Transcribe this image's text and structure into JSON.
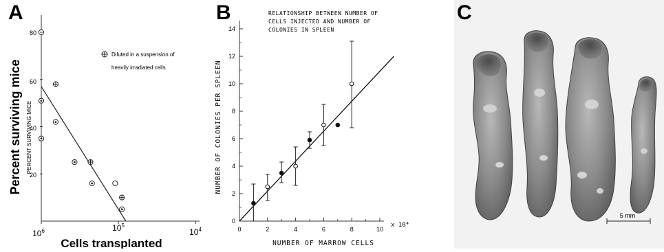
{
  "panels": {
    "a": {
      "letter": "A",
      "ylabel_outer": "Percent surviving mice",
      "ylabel_inner": "PERCENT SURVIVING MICE",
      "xlabel": "Cells transplanted",
      "legend_text_1": "Diluted in a suspension of",
      "legend_text_2": "heavily irradiated cells",
      "y_ticks": [
        "80",
        "60",
        "40",
        "20"
      ],
      "x_ticks": [
        {
          "base": "10",
          "exp": "6"
        },
        {
          "base": "10",
          "exp": "5"
        },
        {
          "base": "10",
          "exp": "4"
        }
      ]
    },
    "b": {
      "letter": "B",
      "title_1": "RELATIONSHIP BETWEEN NUMBER OF",
      "title_2": "CELLS INJECTED AND NUMBER OF",
      "title_3": "COLONIES IN SPLEEN",
      "ylabel": "NUMBER OF COLONIES PER SPLEEN",
      "xlabel": "NUMBER OF MARROW CELLS",
      "x_multiplier": "x 10⁴",
      "y_ticks": [
        "0",
        "2",
        "4",
        "6",
        "8",
        "10",
        "12",
        "14"
      ],
      "x_ticks": [
        "0",
        "2",
        "4",
        "6",
        "8",
        "10"
      ]
    },
    "c": {
      "letter": "C",
      "scale_label": "5 mm"
    }
  },
  "chart_data": [
    {
      "type": "scatter",
      "panel": "A",
      "xlabel": "Cells transplanted",
      "ylabel": "Percent surviving mice",
      "x_scale": "log",
      "x_reversed": true,
      "xlim": [
        1000000,
        10000
      ],
      "ylim": [
        0,
        85
      ],
      "legend": "Diluted in a suspension of heavily irradiated cells",
      "points": [
        {
          "x": 1000000,
          "y": 80,
          "marker": "open"
        },
        {
          "x": 1000000,
          "y": 51,
          "marker": "dotted"
        },
        {
          "x": 1000000,
          "y": 35,
          "marker": "dotted"
        },
        {
          "x": 650000,
          "y": 58,
          "marker": "crossed"
        },
        {
          "x": 650000,
          "y": 42,
          "marker": "dotted"
        },
        {
          "x": 370000,
          "y": 25,
          "marker": "dotted"
        },
        {
          "x": 230000,
          "y": 25,
          "marker": "crossed"
        },
        {
          "x": 220000,
          "y": 16,
          "marker": "dotted"
        },
        {
          "x": 110000,
          "y": 16,
          "marker": "open"
        },
        {
          "x": 90000,
          "y": 10,
          "marker": "crossed"
        },
        {
          "x": 90000,
          "y": 5,
          "marker": "dotted"
        }
      ],
      "trend_line": [
        {
          "x": 1000000,
          "y": 57
        },
        {
          "x": 80000,
          "y": 0
        }
      ]
    },
    {
      "type": "scatter",
      "panel": "B",
      "title": "RELATIONSHIP BETWEEN NUMBER OF CELLS INJECTED AND NUMBER OF COLONIES IN SPLEEN",
      "xlabel": "NUMBER OF MARROW CELLS",
      "ylabel": "NUMBER OF COLONIES PER SPLEEN",
      "xlim": [
        0,
        11
      ],
      "ylim": [
        0,
        14
      ],
      "x_multiplier": "x 10⁴",
      "points": [
        {
          "x": 1,
          "y": 1.3,
          "err_low": 0.0,
          "err_high": 2.7,
          "marker": "filled"
        },
        {
          "x": 2,
          "y": 2.5,
          "err_low": 1.5,
          "err_high": 3.4,
          "marker": "open"
        },
        {
          "x": 3,
          "y": 3.5,
          "err_low": 2.8,
          "err_high": 4.3,
          "marker": "filled"
        },
        {
          "x": 4,
          "y": 4.0,
          "err_low": 2.6,
          "err_high": 5.4,
          "marker": "open"
        },
        {
          "x": 5,
          "y": 5.9,
          "err_low": 5.3,
          "err_high": 6.5,
          "marker": "filled"
        },
        {
          "x": 6,
          "y": 7.0,
          "err_low": 5.5,
          "err_high": 8.5,
          "marker": "open"
        },
        {
          "x": 7,
          "y": 7.0,
          "marker": "filled"
        },
        {
          "x": 8,
          "y": 10.0,
          "err_low": 6.8,
          "err_high": 13.1,
          "marker": "open"
        }
      ],
      "trend_line": [
        {
          "x": 0,
          "y": 0
        },
        {
          "x": 11,
          "y": 12
        }
      ]
    }
  ]
}
